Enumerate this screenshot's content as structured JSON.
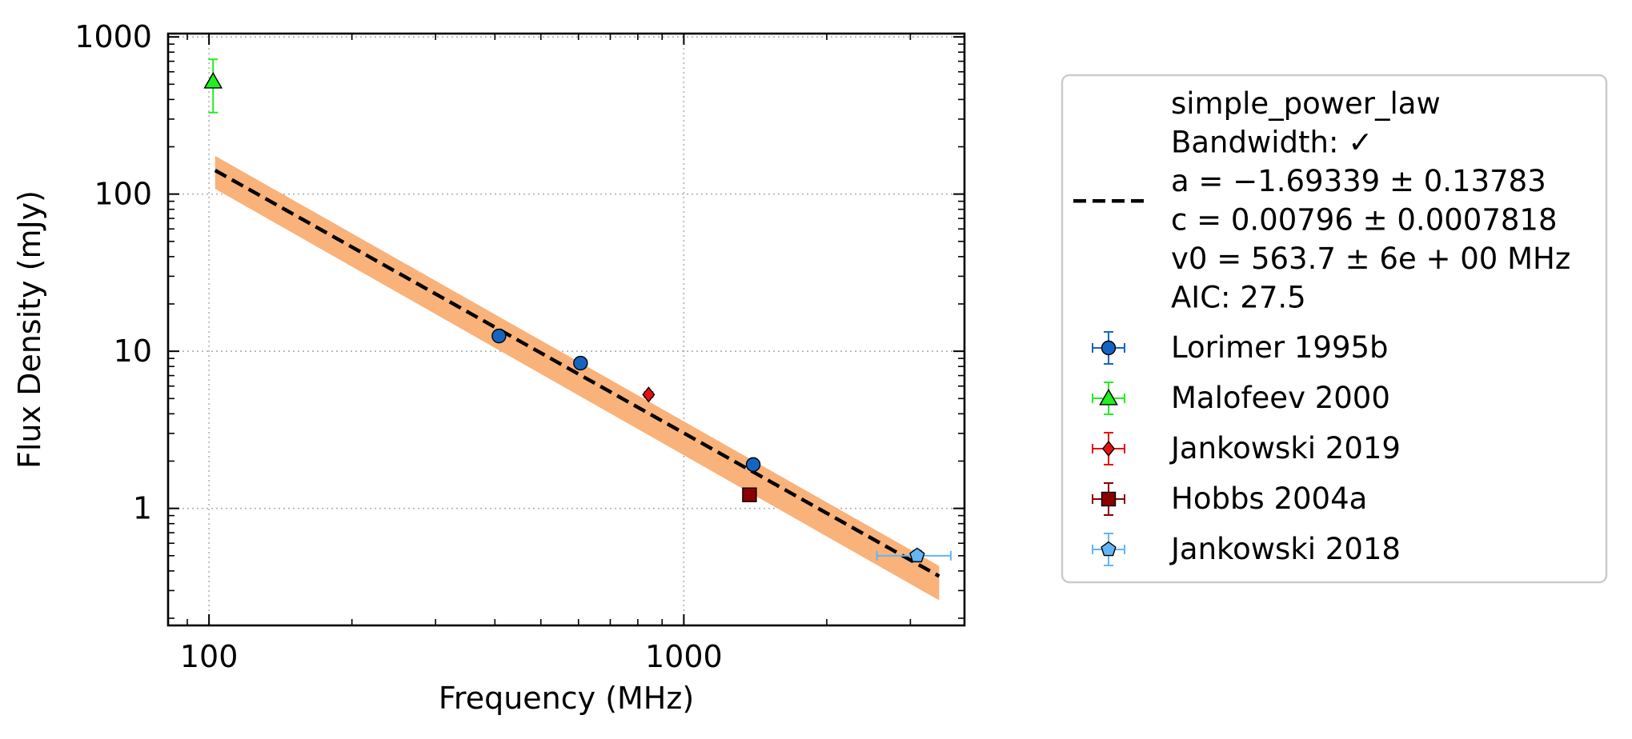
{
  "chart_data": {
    "type": "scatter",
    "xlabel": "Frequency (MHz)",
    "ylabel": "Flux Density (mJy)",
    "x_scale": "log",
    "y_scale": "log",
    "xlim": [
      82,
      3900
    ],
    "ylim": [
      0.18,
      1050
    ],
    "grid": true,
    "legend_placement": "outside-right",
    "x_ticks": [
      {
        "value": 100,
        "label": "100"
      },
      {
        "value": 1000,
        "label": "1000"
      }
    ],
    "y_ticks": [
      {
        "value": 1,
        "label": "1"
      },
      {
        "value": 10,
        "label": "10"
      },
      {
        "value": 100,
        "label": "100"
      },
      {
        "value": 1000,
        "label": "1000"
      }
    ],
    "fit": {
      "model": "simple_power_law",
      "legend_lines": [
        "simple_power_law",
        "Bandwidth: ✓",
        "a = −1.69339 ± 0.13783",
        "c = 0.00796 ± 0.0007818",
        "v0 = 563.7 ± 6e + 00 MHz",
        "AIC: 27.5"
      ],
      "a": -1.69339,
      "c": 0.00796,
      "v0": 563.7,
      "x_range": [
        103,
        3450
      ],
      "band_upper": [
        [
          103,
          175
        ],
        [
          3450,
          0.43
        ]
      ],
      "band_lower": [
        [
          103,
          108
        ],
        [
          3450,
          0.26
        ]
      ],
      "line_color": "#000000",
      "band_color": "#f9b27a"
    },
    "series": [
      {
        "name": "Lorimer 1995b",
        "marker": "circle",
        "color": "#1565c0",
        "points": [
          {
            "x": 408,
            "y": 12.5,
            "yerr": 0.6
          },
          {
            "x": 606,
            "y": 8.4,
            "yerr": 0.4
          },
          {
            "x": 1400,
            "y": 1.9,
            "yerr": 0.1
          }
        ]
      },
      {
        "name": "Malofeev 2000",
        "marker": "triangle",
        "color": "#22ee22",
        "points": [
          {
            "x": 102,
            "y": 520,
            "yerr_low": 190,
            "yerr_high": 200
          }
        ]
      },
      {
        "name": "Jankowski 2019",
        "marker": "diamond",
        "color": "#e81010",
        "points": [
          {
            "x": 843,
            "y": 5.3,
            "yerr": 0.2
          }
        ]
      },
      {
        "name": "Hobbs 2004a",
        "marker": "square",
        "color": "#8b0000",
        "points": [
          {
            "x": 1375,
            "y": 1.22,
            "yerr": 0.08
          }
        ]
      },
      {
        "name": "Jankowski 2018",
        "marker": "pentagon",
        "color": "#64b5f6",
        "points": [
          {
            "x": 3100,
            "y": 0.5,
            "yerr": 0.04,
            "xerr_low": 550,
            "xerr_high": 550
          }
        ]
      }
    ]
  }
}
